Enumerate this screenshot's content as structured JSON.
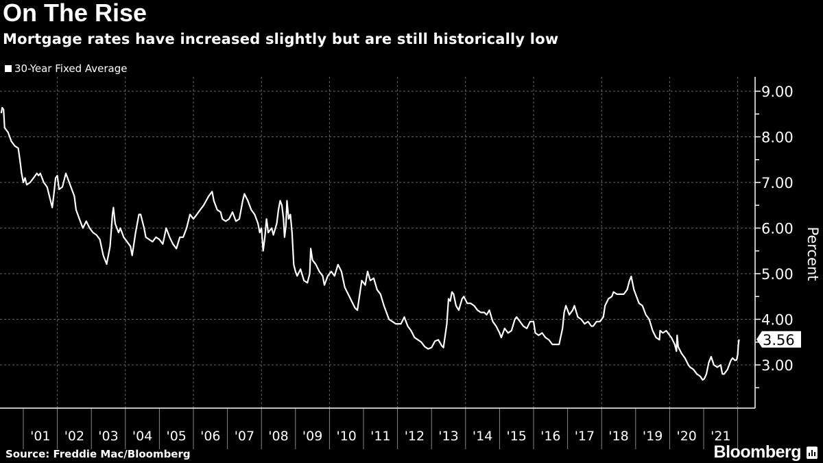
{
  "title": "On The Rise",
  "subtitle": "Mortgage rates have increased slightly but are still historically low",
  "source": "Source: Freddie Mac/Bloomberg",
  "logo": "Bloomberg",
  "colors": {
    "background": "#000000",
    "line": "#ffffff",
    "grid": "#666666"
  },
  "chart_data": {
    "type": "line",
    "title": "On The Rise",
    "subtitle": "Mortgage rates have increased slightly but are still historically low",
    "ylabel": "Percent",
    "xlabel": "",
    "ylim": [
      2.05,
      9.3
    ],
    "xlim": [
      2000.33,
      2022.5
    ],
    "y_ticks": [
      "9.00",
      "8.00",
      "7.00",
      "6.00",
      "5.00",
      "4.00",
      "3.00"
    ],
    "y_tick_values": [
      9,
      8,
      7,
      6,
      5,
      4,
      3
    ],
    "x_tick_labels": [
      "'01",
      "'02",
      "'03",
      "'04",
      "'05",
      "'06",
      "'07",
      "'08",
      "'09",
      "'10",
      "'11",
      "'12",
      "'13",
      "'14",
      "'15",
      "'16",
      "'17",
      "'18",
      "'19",
      "'20",
      "'21"
    ],
    "x_tick_years": [
      2001,
      2002,
      2003,
      2004,
      2005,
      2006,
      2007,
      2008,
      2009,
      2010,
      2011,
      2012,
      2013,
      2014,
      2015,
      2016,
      2017,
      2018,
      2019,
      2020,
      2021
    ],
    "grid": true,
    "legend_position": "top-left",
    "last_value_label": "3.56",
    "series": [
      {
        "name": "30-Year Fixed Average",
        "points": [
          [
            2000.35,
            8.52
          ],
          [
            2000.38,
            8.64
          ],
          [
            2000.42,
            8.6
          ],
          [
            2000.45,
            8.2
          ],
          [
            2000.55,
            8.1
          ],
          [
            2000.65,
            7.9
          ],
          [
            2000.75,
            7.8
          ],
          [
            2000.85,
            7.75
          ],
          [
            2000.9,
            7.5
          ],
          [
            2000.95,
            7.2
          ],
          [
            2001.0,
            7.0
          ],
          [
            2001.05,
            7.1
          ],
          [
            2001.1,
            6.95
          ],
          [
            2001.2,
            7.0
          ],
          [
            2001.3,
            7.1
          ],
          [
            2001.4,
            7.2
          ],
          [
            2001.45,
            7.15
          ],
          [
            2001.5,
            7.2
          ],
          [
            2001.6,
            7.0
          ],
          [
            2001.7,
            6.9
          ],
          [
            2001.8,
            6.6
          ],
          [
            2001.85,
            6.45
          ],
          [
            2001.9,
            6.75
          ],
          [
            2001.95,
            7.1
          ],
          [
            2002.0,
            7.15
          ],
          [
            2002.05,
            6.85
          ],
          [
            2002.15,
            6.9
          ],
          [
            2002.25,
            7.2
          ],
          [
            2002.3,
            7.1
          ],
          [
            2002.4,
            6.9
          ],
          [
            2002.5,
            6.7
          ],
          [
            2002.55,
            6.4
          ],
          [
            2002.65,
            6.2
          ],
          [
            2002.75,
            6.0
          ],
          [
            2002.85,
            6.15
          ],
          [
            2002.95,
            6.0
          ],
          [
            2003.05,
            5.9
          ],
          [
            2003.15,
            5.85
          ],
          [
            2003.25,
            5.75
          ],
          [
            2003.35,
            5.4
          ],
          [
            2003.45,
            5.21
          ],
          [
            2003.55,
            5.6
          ],
          [
            2003.62,
            6.3
          ],
          [
            2003.65,
            6.45
          ],
          [
            2003.7,
            6.1
          ],
          [
            2003.8,
            5.9
          ],
          [
            2003.85,
            6.0
          ],
          [
            2003.95,
            5.8
          ],
          [
            2004.05,
            5.7
          ],
          [
            2004.15,
            5.6
          ],
          [
            2004.2,
            5.4
          ],
          [
            2004.3,
            5.9
          ],
          [
            2004.4,
            6.3
          ],
          [
            2004.45,
            6.3
          ],
          [
            2004.55,
            6.0
          ],
          [
            2004.6,
            5.8
          ],
          [
            2004.7,
            5.75
          ],
          [
            2004.8,
            5.7
          ],
          [
            2004.9,
            5.8
          ],
          [
            2005.0,
            5.75
          ],
          [
            2005.1,
            5.65
          ],
          [
            2005.2,
            6.0
          ],
          [
            2005.3,
            5.8
          ],
          [
            2005.4,
            5.65
          ],
          [
            2005.5,
            5.55
          ],
          [
            2005.6,
            5.8
          ],
          [
            2005.7,
            5.8
          ],
          [
            2005.8,
            6.0
          ],
          [
            2005.9,
            6.3
          ],
          [
            2006.0,
            6.2
          ],
          [
            2006.1,
            6.3
          ],
          [
            2006.2,
            6.4
          ],
          [
            2006.3,
            6.5
          ],
          [
            2006.45,
            6.7
          ],
          [
            2006.55,
            6.8
          ],
          [
            2006.6,
            6.6
          ],
          [
            2006.7,
            6.4
          ],
          [
            2006.8,
            6.35
          ],
          [
            2006.85,
            6.2
          ],
          [
            2006.95,
            6.15
          ],
          [
            2007.05,
            6.2
          ],
          [
            2007.15,
            6.35
          ],
          [
            2007.25,
            6.15
          ],
          [
            2007.35,
            6.2
          ],
          [
            2007.45,
            6.6
          ],
          [
            2007.5,
            6.75
          ],
          [
            2007.6,
            6.6
          ],
          [
            2007.7,
            6.4
          ],
          [
            2007.8,
            6.3
          ],
          [
            2007.9,
            6.1
          ],
          [
            2007.95,
            5.9
          ],
          [
            2008.0,
            6.0
          ],
          [
            2008.05,
            5.5
          ],
          [
            2008.1,
            5.8
          ],
          [
            2008.15,
            6.2
          ],
          [
            2008.2,
            5.9
          ],
          [
            2008.3,
            6.0
          ],
          [
            2008.35,
            5.85
          ],
          [
            2008.45,
            6.1
          ],
          [
            2008.5,
            6.4
          ],
          [
            2008.55,
            6.6
          ],
          [
            2008.6,
            6.5
          ],
          [
            2008.65,
            6.2
          ],
          [
            2008.68,
            5.8
          ],
          [
            2008.72,
            6.05
          ],
          [
            2008.75,
            6.6
          ],
          [
            2008.8,
            6.2
          ],
          [
            2008.85,
            6.3
          ],
          [
            2008.9,
            5.9
          ],
          [
            2008.95,
            5.2
          ],
          [
            2009.0,
            5.05
          ],
          [
            2009.05,
            4.95
          ],
          [
            2009.15,
            5.1
          ],
          [
            2009.25,
            4.85
          ],
          [
            2009.35,
            4.8
          ],
          [
            2009.42,
            5.0
          ],
          [
            2009.45,
            5.55
          ],
          [
            2009.5,
            5.3
          ],
          [
            2009.6,
            5.2
          ],
          [
            2009.7,
            5.05
          ],
          [
            2009.8,
            4.95
          ],
          [
            2009.85,
            4.75
          ],
          [
            2009.95,
            4.95
          ],
          [
            2010.05,
            5.05
          ],
          [
            2010.15,
            4.95
          ],
          [
            2010.25,
            5.2
          ],
          [
            2010.35,
            5.05
          ],
          [
            2010.45,
            4.7
          ],
          [
            2010.55,
            4.55
          ],
          [
            2010.65,
            4.4
          ],
          [
            2010.75,
            4.25
          ],
          [
            2010.82,
            4.2
          ],
          [
            2010.9,
            4.6
          ],
          [
            2010.95,
            4.85
          ],
          [
            2011.05,
            4.75
          ],
          [
            2011.12,
            5.05
          ],
          [
            2011.2,
            4.85
          ],
          [
            2011.3,
            4.9
          ],
          [
            2011.4,
            4.65
          ],
          [
            2011.5,
            4.55
          ],
          [
            2011.6,
            4.3
          ],
          [
            2011.7,
            4.1
          ],
          [
            2011.75,
            4.0
          ],
          [
            2011.85,
            3.95
          ],
          [
            2011.95,
            3.9
          ],
          [
            2012.1,
            3.9
          ],
          [
            2012.2,
            4.05
          ],
          [
            2012.3,
            3.85
          ],
          [
            2012.4,
            3.75
          ],
          [
            2012.5,
            3.6
          ],
          [
            2012.6,
            3.55
          ],
          [
            2012.7,
            3.5
          ],
          [
            2012.8,
            3.4
          ],
          [
            2012.9,
            3.35
          ],
          [
            2013.0,
            3.38
          ],
          [
            2013.1,
            3.52
          ],
          [
            2013.2,
            3.55
          ],
          [
            2013.3,
            3.42
          ],
          [
            2013.35,
            3.38
          ],
          [
            2013.45,
            3.9
          ],
          [
            2013.5,
            4.45
          ],
          [
            2013.55,
            4.4
          ],
          [
            2013.6,
            4.6
          ],
          [
            2013.65,
            4.55
          ],
          [
            2013.72,
            4.3
          ],
          [
            2013.8,
            4.2
          ],
          [
            2013.9,
            4.45
          ],
          [
            2013.95,
            4.5
          ],
          [
            2014.05,
            4.35
          ],
          [
            2014.15,
            4.35
          ],
          [
            2014.25,
            4.3
          ],
          [
            2014.35,
            4.2
          ],
          [
            2014.45,
            4.15
          ],
          [
            2014.55,
            4.15
          ],
          [
            2014.62,
            4.1
          ],
          [
            2014.7,
            4.2
          ],
          [
            2014.8,
            3.95
          ],
          [
            2014.9,
            3.85
          ],
          [
            2015.0,
            3.7
          ],
          [
            2015.05,
            3.6
          ],
          [
            2015.15,
            3.8
          ],
          [
            2015.25,
            3.7
          ],
          [
            2015.35,
            3.75
          ],
          [
            2015.45,
            4.0
          ],
          [
            2015.5,
            4.05
          ],
          [
            2015.6,
            3.95
          ],
          [
            2015.7,
            3.85
          ],
          [
            2015.8,
            3.8
          ],
          [
            2015.9,
            3.95
          ],
          [
            2016.0,
            3.95
          ],
          [
            2016.05,
            3.7
          ],
          [
            2016.15,
            3.65
          ],
          [
            2016.25,
            3.7
          ],
          [
            2016.35,
            3.6
          ],
          [
            2016.45,
            3.55
          ],
          [
            2016.55,
            3.45
          ],
          [
            2016.65,
            3.45
          ],
          [
            2016.75,
            3.45
          ],
          [
            2016.85,
            3.8
          ],
          [
            2016.9,
            4.15
          ],
          [
            2016.95,
            4.3
          ],
          [
            2017.05,
            4.1
          ],
          [
            2017.15,
            4.2
          ],
          [
            2017.2,
            4.3
          ],
          [
            2017.3,
            4.05
          ],
          [
            2017.4,
            4.0
          ],
          [
            2017.5,
            3.9
          ],
          [
            2017.6,
            3.95
          ],
          [
            2017.7,
            3.85
          ],
          [
            2017.75,
            3.85
          ],
          [
            2017.85,
            3.95
          ],
          [
            2017.95,
            3.95
          ],
          [
            2018.05,
            4.05
          ],
          [
            2018.1,
            4.3
          ],
          [
            2018.2,
            4.45
          ],
          [
            2018.3,
            4.5
          ],
          [
            2018.35,
            4.6
          ],
          [
            2018.45,
            4.55
          ],
          [
            2018.55,
            4.55
          ],
          [
            2018.65,
            4.55
          ],
          [
            2018.75,
            4.65
          ],
          [
            2018.82,
            4.85
          ],
          [
            2018.87,
            4.94
          ],
          [
            2018.95,
            4.65
          ],
          [
            2019.05,
            4.45
          ],
          [
            2019.1,
            4.35
          ],
          [
            2019.2,
            4.3
          ],
          [
            2019.3,
            4.1
          ],
          [
            2019.4,
            4.0
          ],
          [
            2019.5,
            3.75
          ],
          [
            2019.6,
            3.6
          ],
          [
            2019.7,
            3.55
          ],
          [
            2019.72,
            3.75
          ],
          [
            2019.8,
            3.7
          ],
          [
            2019.9,
            3.75
          ],
          [
            2019.95,
            3.7
          ],
          [
            2020.05,
            3.6
          ],
          [
            2020.15,
            3.45
          ],
          [
            2020.2,
            3.3
          ],
          [
            2020.22,
            3.65
          ],
          [
            2020.25,
            3.4
          ],
          [
            2020.35,
            3.25
          ],
          [
            2020.45,
            3.15
          ],
          [
            2020.55,
            3.0
          ],
          [
            2020.6,
            2.95
          ],
          [
            2020.7,
            2.9
          ],
          [
            2020.8,
            2.8
          ],
          [
            2020.9,
            2.75
          ],
          [
            2020.97,
            2.67
          ],
          [
            2021.02,
            2.7
          ],
          [
            2021.08,
            2.8
          ],
          [
            2021.15,
            3.05
          ],
          [
            2021.22,
            3.18
          ],
          [
            2021.3,
            3.0
          ],
          [
            2021.4,
            2.95
          ],
          [
            2021.5,
            3.0
          ],
          [
            2021.55,
            2.8
          ],
          [
            2021.6,
            2.8
          ],
          [
            2021.7,
            2.9
          ],
          [
            2021.8,
            3.1
          ],
          [
            2021.85,
            3.15
          ],
          [
            2021.92,
            3.1
          ],
          [
            2021.97,
            3.11
          ],
          [
            2022.0,
            3.22
          ],
          [
            2022.02,
            3.45
          ],
          [
            2022.04,
            3.56
          ]
        ]
      }
    ]
  }
}
